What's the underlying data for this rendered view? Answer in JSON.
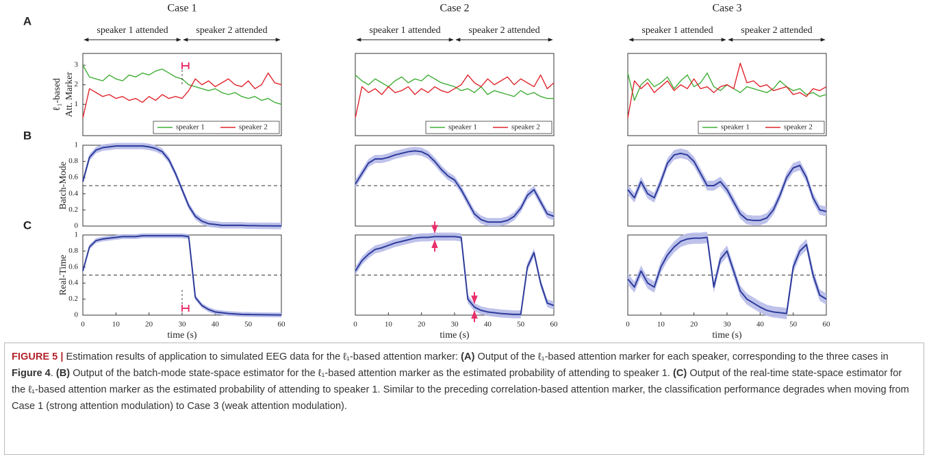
{
  "chart_data": [
    {
      "type": "line",
      "title": "Case 1",
      "panel": "A",
      "annotations": [
        "speaker 1 attended",
        "speaker 2 attended"
      ],
      "ylabel": [
        "ℓ₁-based",
        "Att. Marker"
      ],
      "x": [
        0,
        2,
        4,
        6,
        8,
        10,
        12,
        14,
        16,
        18,
        20,
        22,
        24,
        26,
        28,
        30,
        32,
        34,
        36,
        38,
        40,
        42,
        44,
        46,
        48,
        50,
        52,
        54,
        56,
        58,
        60
      ],
      "xlim": [
        0,
        60
      ],
      "ylim": [
        -0.6,
        3.6
      ],
      "yticks": [
        1,
        2,
        3
      ],
      "legend": "lower right",
      "highlight": [
        30,
        32
      ],
      "series": [
        {
          "name": "speaker 1",
          "color": "#3fae35",
          "values": [
            3.0,
            2.4,
            2.3,
            2.2,
            2.5,
            2.3,
            2.2,
            2.5,
            2.4,
            2.6,
            2.5,
            2.7,
            2.8,
            2.6,
            2.4,
            2.3,
            2.0,
            1.9,
            1.8,
            1.7,
            1.8,
            1.6,
            1.5,
            1.6,
            1.4,
            1.3,
            1.4,
            1.2,
            1.3,
            1.1,
            1.0
          ]
        },
        {
          "name": "speaker 2",
          "color": "#e0242a",
          "values": [
            0.3,
            1.8,
            1.6,
            1.4,
            1.5,
            1.3,
            1.4,
            1.2,
            1.3,
            1.1,
            1.4,
            1.2,
            1.5,
            1.3,
            1.4,
            1.3,
            1.7,
            2.3,
            2.0,
            2.2,
            1.9,
            2.1,
            2.3,
            2.0,
            1.9,
            2.2,
            1.8,
            2.0,
            2.6,
            2.1,
            2.0
          ]
        }
      ]
    },
    {
      "type": "line",
      "title": "Case 2",
      "annotations": [
        "speaker 1 attended",
        "speaker 2 attended"
      ],
      "x": [
        0,
        2,
        4,
        6,
        8,
        10,
        12,
        14,
        16,
        18,
        20,
        22,
        24,
        26,
        28,
        30,
        32,
        34,
        36,
        38,
        40,
        42,
        44,
        46,
        48,
        50,
        52,
        54,
        56,
        58,
        60
      ],
      "xlim": [
        0,
        60
      ],
      "ylim": [
        -0.6,
        3.6
      ],
      "legend": "lower right",
      "series": [
        {
          "name": "speaker 1",
          "color": "#3fae35",
          "values": [
            2.5,
            2.2,
            2.0,
            2.3,
            2.1,
            1.9,
            2.2,
            2.4,
            2.1,
            2.3,
            2.2,
            2.5,
            2.3,
            2.1,
            2.0,
            1.9,
            1.7,
            1.8,
            1.6,
            1.9,
            1.5,
            1.7,
            1.6,
            1.5,
            1.4,
            1.7,
            1.5,
            1.6,
            1.4,
            1.3,
            1.3
          ]
        },
        {
          "name": "speaker 2",
          "color": "#e0242a",
          "values": [
            0.3,
            1.9,
            1.6,
            1.8,
            1.5,
            1.9,
            1.6,
            1.7,
            1.9,
            1.5,
            1.8,
            1.6,
            1.9,
            1.7,
            1.6,
            1.8,
            2.0,
            2.5,
            2.1,
            1.9,
            2.3,
            2.0,
            2.2,
            2.4,
            2.0,
            2.3,
            2.1,
            1.9,
            2.5,
            1.8,
            2.1
          ]
        }
      ]
    },
    {
      "type": "line",
      "title": "Case 3",
      "annotations": [
        "speaker 1 attended",
        "speaker 2 attended"
      ],
      "x": [
        0,
        2,
        4,
        6,
        8,
        10,
        12,
        14,
        16,
        18,
        20,
        22,
        24,
        26,
        28,
        30,
        32,
        34,
        36,
        38,
        40,
        42,
        44,
        46,
        48,
        50,
        52,
        54,
        56,
        58,
        60
      ],
      "xlim": [
        0,
        60
      ],
      "ylim": [
        -0.6,
        3.6
      ],
      "legend": "lower right",
      "series": [
        {
          "name": "speaker 1",
          "color": "#3fae35",
          "values": [
            2.6,
            1.2,
            2.0,
            2.3,
            1.9,
            2.1,
            2.4,
            1.8,
            2.2,
            2.5,
            1.9,
            2.1,
            2.6,
            1.9,
            1.7,
            2.0,
            1.8,
            1.6,
            1.9,
            1.8,
            1.7,
            1.6,
            1.8,
            2.2,
            1.9,
            1.7,
            1.8,
            1.5,
            1.6,
            1.4,
            1.5
          ]
        },
        {
          "name": "speaker 2",
          "color": "#e0242a",
          "values": [
            0.3,
            2.2,
            1.8,
            2.1,
            1.6,
            1.9,
            2.2,
            1.7,
            2.0,
            1.8,
            2.3,
            1.8,
            1.9,
            1.6,
            1.9,
            2.0,
            1.8,
            3.1,
            2.1,
            2.2,
            1.9,
            2.0,
            1.7,
            1.8,
            1.9,
            1.5,
            1.6,
            1.4,
            1.8,
            1.7,
            1.9
          ]
        }
      ]
    },
    {
      "type": "line",
      "panel": "B",
      "ylabel": "Batch-Mode",
      "band": 0.04,
      "reference_line": 0.5,
      "x": [
        0,
        2,
        4,
        6,
        8,
        10,
        12,
        14,
        16,
        18,
        20,
        22,
        24,
        26,
        28,
        30,
        32,
        34,
        36,
        38,
        40,
        42,
        44,
        46,
        48,
        50,
        52,
        54,
        56,
        58,
        60
      ],
      "xlim": [
        0,
        60
      ],
      "ylim": [
        0,
        1
      ],
      "yticks": [
        0,
        0.2,
        0.4,
        0.6,
        0.8,
        1
      ],
      "series": [
        {
          "color": "#2b3a9a",
          "values": [
            0.55,
            0.85,
            0.94,
            0.97,
            0.98,
            0.99,
            0.99,
            0.99,
            0.99,
            0.99,
            0.98,
            0.96,
            0.92,
            0.82,
            0.65,
            0.45,
            0.25,
            0.12,
            0.06,
            0.03,
            0.02,
            0.01,
            0.01,
            0.01,
            0.01,
            0.005,
            0.005,
            0.003,
            0.003,
            0.002,
            0.002
          ]
        }
      ]
    },
    {
      "type": "line",
      "band": 0.05,
      "reference_line": 0.5,
      "x": [
        0,
        2,
        4,
        6,
        8,
        10,
        12,
        14,
        16,
        18,
        20,
        22,
        24,
        26,
        28,
        30,
        32,
        34,
        36,
        38,
        40,
        42,
        44,
        46,
        48,
        50,
        52,
        54,
        56,
        58,
        60
      ],
      "xlim": [
        0,
        60
      ],
      "ylim": [
        0,
        1
      ],
      "series": [
        {
          "color": "#2b3a9a",
          "values": [
            0.52,
            0.65,
            0.78,
            0.83,
            0.83,
            0.85,
            0.88,
            0.9,
            0.92,
            0.93,
            0.92,
            0.88,
            0.8,
            0.7,
            0.62,
            0.57,
            0.45,
            0.3,
            0.15,
            0.08,
            0.05,
            0.05,
            0.05,
            0.07,
            0.12,
            0.22,
            0.38,
            0.45,
            0.3,
            0.15,
            0.12
          ]
        }
      ]
    },
    {
      "type": "line",
      "band": 0.06,
      "reference_line": 0.5,
      "x": [
        0,
        2,
        4,
        6,
        8,
        10,
        12,
        14,
        16,
        18,
        20,
        22,
        24,
        26,
        28,
        30,
        32,
        34,
        36,
        38,
        40,
        42,
        44,
        46,
        48,
        50,
        52,
        54,
        56,
        58,
        60
      ],
      "xlim": [
        0,
        60
      ],
      "ylim": [
        0,
        1
      ],
      "series": [
        {
          "color": "#2b3a9a",
          "values": [
            0.45,
            0.35,
            0.55,
            0.4,
            0.35,
            0.55,
            0.78,
            0.88,
            0.9,
            0.88,
            0.8,
            0.65,
            0.5,
            0.5,
            0.55,
            0.45,
            0.3,
            0.15,
            0.08,
            0.07,
            0.07,
            0.1,
            0.2,
            0.38,
            0.6,
            0.72,
            0.75,
            0.6,
            0.35,
            0.2,
            0.18
          ]
        }
      ]
    },
    {
      "type": "line",
      "panel": "C",
      "ylabel": "Real-Time",
      "band": 0.03,
      "reference_line": 0.5,
      "xlabel": "time (s)",
      "highlight": [
        30,
        32
      ],
      "x": [
        0,
        2,
        4,
        6,
        8,
        10,
        12,
        14,
        16,
        18,
        20,
        22,
        24,
        26,
        28,
        30,
        32,
        34,
        36,
        38,
        40,
        42,
        44,
        46,
        48,
        50,
        52,
        54,
        56,
        58,
        60
      ],
      "xlim": [
        0,
        60
      ],
      "ylim": [
        0,
        1
      ],
      "yticks": [
        0,
        0.2,
        0.4,
        0.6,
        0.8,
        1
      ],
      "xticks": [
        0,
        10,
        20,
        30,
        40,
        50,
        60
      ],
      "series": [
        {
          "color": "#2b3a9a",
          "values": [
            0.55,
            0.85,
            0.93,
            0.95,
            0.96,
            0.97,
            0.98,
            0.98,
            0.98,
            0.99,
            0.99,
            0.99,
            0.99,
            0.99,
            0.99,
            0.99,
            0.98,
            0.22,
            0.12,
            0.07,
            0.04,
            0.03,
            0.02,
            0.015,
            0.01,
            0.008,
            0.006,
            0.005,
            0.004,
            0.003,
            0.002
          ]
        }
      ]
    },
    {
      "type": "line",
      "band": 0.05,
      "reference_line": 0.5,
      "xlabel": "time (s)",
      "arrows": [
        24,
        36
      ],
      "x": [
        0,
        2,
        4,
        6,
        8,
        10,
        12,
        14,
        16,
        18,
        20,
        22,
        24,
        26,
        28,
        30,
        32,
        34,
        36,
        38,
        40,
        42,
        44,
        46,
        48,
        50,
        52,
        54,
        56,
        58,
        60
      ],
      "xlim": [
        0,
        60
      ],
      "ylim": [
        0,
        1
      ],
      "xticks": [
        0,
        10,
        20,
        30,
        40,
        50,
        60
      ],
      "series": [
        {
          "color": "#2b3a9a",
          "values": [
            0.55,
            0.68,
            0.76,
            0.82,
            0.84,
            0.87,
            0.9,
            0.92,
            0.94,
            0.96,
            0.97,
            0.97,
            0.98,
            0.98,
            0.98,
            0.98,
            0.97,
            0.2,
            0.1,
            0.06,
            0.04,
            0.03,
            0.02,
            0.015,
            0.01,
            0.01,
            0.6,
            0.78,
            0.4,
            0.15,
            0.12
          ]
        }
      ]
    },
    {
      "type": "line",
      "band": 0.07,
      "reference_line": 0.5,
      "xlabel": "time (s)",
      "x": [
        0,
        2,
        4,
        6,
        8,
        10,
        12,
        14,
        16,
        18,
        20,
        22,
        24,
        26,
        28,
        30,
        32,
        34,
        36,
        38,
        40,
        42,
        44,
        46,
        48,
        50,
        52,
        54,
        56,
        58,
        60
      ],
      "xlim": [
        0,
        60
      ],
      "ylim": [
        0,
        1
      ],
      "xticks": [
        0,
        10,
        20,
        30,
        40,
        50,
        60
      ],
      "series": [
        {
          "color": "#2b3a9a",
          "values": [
            0.45,
            0.35,
            0.55,
            0.4,
            0.35,
            0.6,
            0.75,
            0.85,
            0.92,
            0.95,
            0.96,
            0.96,
            0.97,
            0.35,
            0.7,
            0.8,
            0.55,
            0.3,
            0.2,
            0.15,
            0.1,
            0.06,
            0.04,
            0.03,
            0.02,
            0.6,
            0.8,
            0.88,
            0.5,
            0.25,
            0.2
          ]
        }
      ]
    }
  ],
  "caption": [
    {
      "text": "FIGURE 5 |",
      "style": "label"
    },
    {
      "text": " Estimation results of application to simulated EEG data for the ℓ₁-based attention marker: "
    },
    {
      "text": "(A)",
      "style": "bold"
    },
    {
      "text": " Output of the ℓ₁-based attention marker for each speaker, corresponding to the three cases in "
    },
    {
      "text": "Figure 4",
      "style": "bold"
    },
    {
      "text": ". "
    },
    {
      "text": "(B)",
      "style": "bold"
    },
    {
      "text": " Output of the batch-mode state-space estimator for the ℓ₁-based attention marker as the estimated probability of attending to speaker 1. "
    },
    {
      "text": "(C)",
      "style": "bold"
    },
    {
      "text": " Output of the real-time state-space estimator for the ℓ₁-based attention marker as the estimated probability of attending to speaker 1. Similar to the preceding correlation-based attention marker, the classification performance degrades when moving from Case 1 (strong attention modulation) to Case 3 (weak attention modulation)."
    }
  ]
}
